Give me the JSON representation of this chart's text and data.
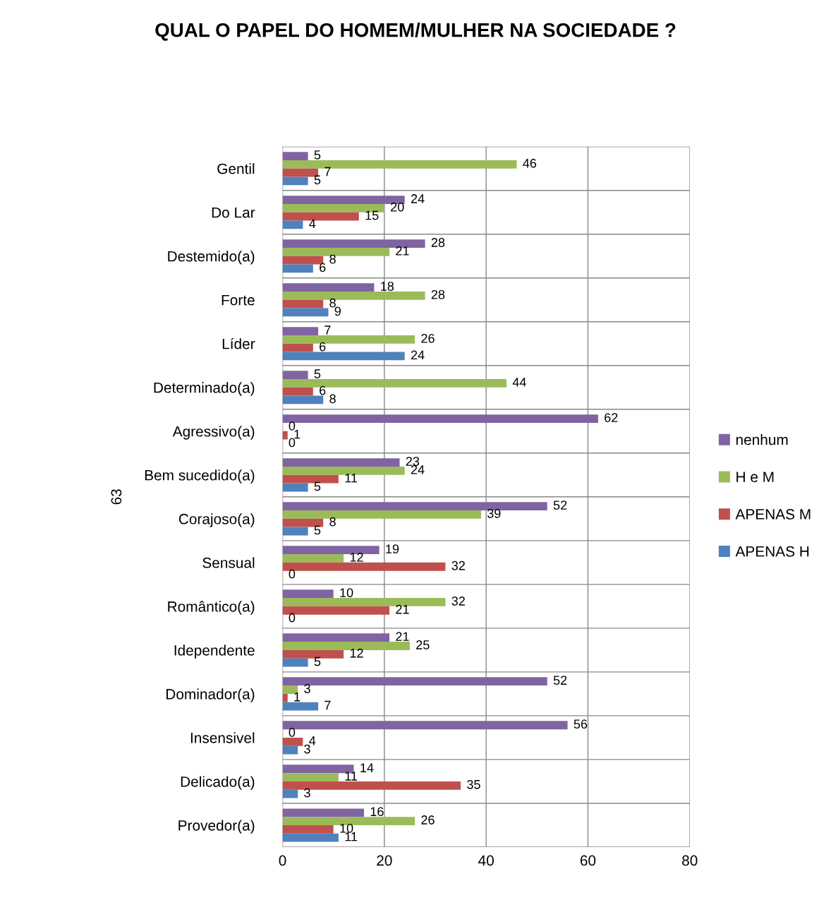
{
  "chart_data": {
    "type": "bar",
    "orientation": "horizontal",
    "title": "QUAL O PAPEL DO HOMEM/MULHER NA SOCIEDADE ?",
    "ylabel": "63",
    "categories": [
      "Gentil",
      "Do Lar",
      "Destemido(a)",
      "Forte",
      "Líder",
      "Determinado(a)",
      "Agressivo(a)",
      "Bem sucedido(a)",
      "Corajoso(a)",
      "Sensual",
      "Romântico(a)",
      "Idependente",
      "Dominador(a)",
      "Insensivel",
      "Delicado(a)",
      "Provedor(a)"
    ],
    "series": [
      {
        "name": "nenhum",
        "color": "#8064a2",
        "values": [
          5,
          24,
          28,
          18,
          7,
          5,
          62,
          23,
          52,
          19,
          10,
          21,
          52,
          56,
          14,
          16
        ]
      },
      {
        "name": "H e M",
        "color": "#9bbb59",
        "values": [
          46,
          20,
          21,
          28,
          26,
          44,
          0,
          24,
          39,
          12,
          32,
          25,
          3,
          0,
          11,
          26
        ]
      },
      {
        "name": "APENAS M",
        "color": "#c0504d",
        "values": [
          7,
          15,
          8,
          8,
          6,
          6,
          1,
          11,
          8,
          32,
          21,
          12,
          1,
          4,
          35,
          10
        ]
      },
      {
        "name": "APENAS H",
        "color": "#4f81bd",
        "values": [
          5,
          4,
          6,
          9,
          24,
          8,
          0,
          5,
          5,
          0,
          0,
          5,
          7,
          3,
          3,
          11
        ]
      }
    ],
    "xlim": [
      0,
      80
    ],
    "xticks": [
      0,
      20,
      40,
      60,
      80
    ],
    "grid": true,
    "legend": "right",
    "data_labels": true
  }
}
